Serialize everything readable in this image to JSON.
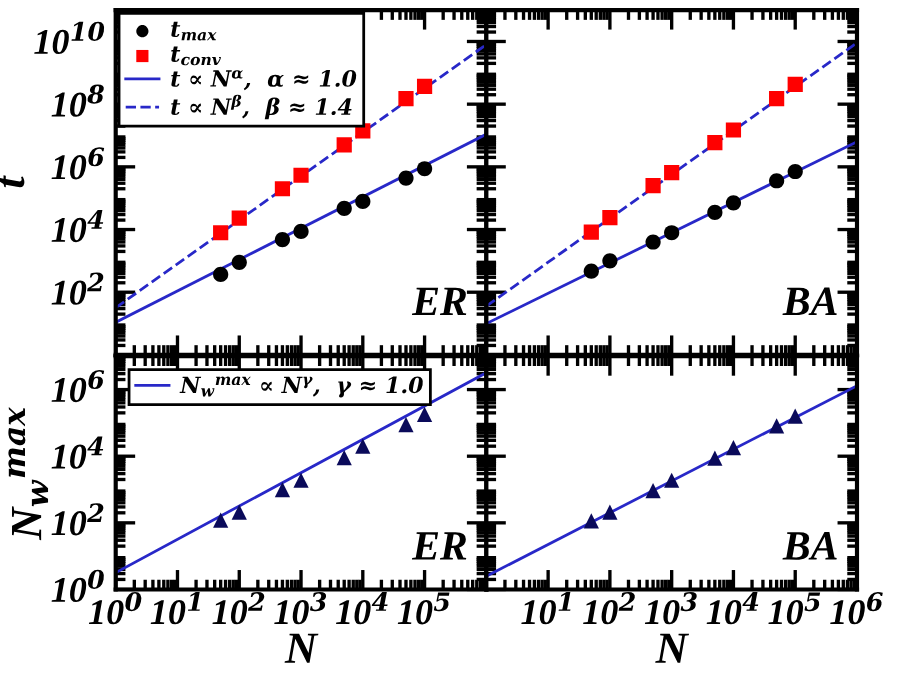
{
  "chart_data": [
    {
      "type": "scatter",
      "ylabel": "t",
      "log": "xy",
      "xlim": [
        1,
        1000000
      ],
      "ylim": [
        1,
        100000000000
      ],
      "tick_labels": "y",
      "legend": "top left",
      "annotations": [
        "ER"
      ],
      "xticks": [
        {
          "value": 1,
          "label": null
        },
        {
          "value": 10,
          "label": null
        },
        {
          "value": 100,
          "label": null
        },
        {
          "value": 1000,
          "label": null
        },
        {
          "value": 10000,
          "label": null
        },
        {
          "value": 100000,
          "label": null
        },
        {
          "value": 1000000,
          "label": null
        }
      ],
      "yticks": [
        {
          "value": 100,
          "label": "10$^{2}$"
        },
        {
          "value": 10000,
          "label": "10$^{4}$"
        },
        {
          "value": 1000000,
          "label": "10$^{6}$"
        },
        {
          "value": 100000000,
          "label": "10$^{8}$"
        },
        {
          "value": 10000000000,
          "label": "10$^{10}$"
        }
      ],
      "series": [
        {
          "name": "t$_{max}$",
          "marker": "circle",
          "color": "#000000",
          "x": [
            50,
            100,
            500,
            1000,
            5000,
            10000,
            50000,
            100000
          ],
          "values": [
            370,
            900,
            4800,
            8700,
            47000,
            79000,
            440000,
            870000
          ]
        },
        {
          "name": "t$_{conv}$",
          "marker": "square",
          "color": "#ff0000",
          "x": [
            50,
            100,
            500,
            1000,
            5000,
            10000,
            50000,
            100000
          ],
          "values": [
            7900,
            23000,
            200000,
            540000,
            5000000,
            14000000,
            150000000,
            370000000
          ]
        },
        {
          "name": "t ∝ N$^{α}$,  α ≈ 1.0",
          "type": "line",
          "line_style": "solid",
          "color": "#2828c8",
          "x": [
            1,
            1000000
          ],
          "values": [
            11,
            11000000
          ]
        },
        {
          "name": "t ∝ N$^{β}$,  β ≈ 1.4",
          "type": "line",
          "line_style": "dashed",
          "color": "#2828c8",
          "x": [
            1,
            1000000
          ],
          "values": [
            32,
            8000000000
          ]
        }
      ]
    },
    {
      "type": "scatter",
      "log": "xy",
      "xlim": [
        1,
        1000000
      ],
      "ylim": [
        1,
        100000000000
      ],
      "tick_labels": false,
      "annotations": [
        "BA"
      ],
      "xticks": [
        {
          "value": 1,
          "label": null
        },
        {
          "value": 10,
          "label": null
        },
        {
          "value": 100,
          "label": null
        },
        {
          "value": 1000,
          "label": null
        },
        {
          "value": 10000,
          "label": null
        },
        {
          "value": 100000,
          "label": null
        },
        {
          "value": 1000000,
          "label": null
        }
      ],
      "yticks": [
        {
          "value": 100,
          "label": null
        },
        {
          "value": 10000,
          "label": null
        },
        {
          "value": 1000000,
          "label": null
        },
        {
          "value": 100000000,
          "label": null
        },
        {
          "value": 10000000000,
          "label": null
        }
      ],
      "series": [
        {
          "marker": "circle",
          "color": "#000000",
          "x": [
            50,
            100,
            500,
            1000,
            5000,
            10000,
            50000,
            100000
          ],
          "values": [
            470,
            1000,
            4000,
            7900,
            35000,
            71000,
            360000,
            710000
          ]
        },
        {
          "marker": "square",
          "color": "#ff0000",
          "x": [
            50,
            100,
            500,
            1000,
            5000,
            10000,
            50000,
            100000
          ],
          "values": [
            8300,
            24000,
            250000,
            650000,
            5900000,
            15000000,
            150000000,
            430000000
          ]
        },
        {
          "type": "line",
          "line_style": "solid",
          "color": "#2828c8",
          "x": [
            1,
            1000000
          ],
          "values": [
            10,
            6300000
          ]
        },
        {
          "type": "line",
          "line_style": "dashed",
          "color": "#2828c8",
          "x": [
            1,
            1000000
          ],
          "values": [
            36,
            9100000000
          ]
        }
      ]
    },
    {
      "type": "scatter",
      "xlabel": "N",
      "ylabel": "N$_{w}$$^{max}$",
      "log": "xy",
      "xlim": [
        1,
        1000000
      ],
      "ylim": [
        1,
        10000000
      ],
      "legend": "top left",
      "annotations": [
        "ER"
      ],
      "xticks": [
        {
          "value": 1,
          "label": "10$^{0}$"
        },
        {
          "value": 10,
          "label": "10$^{1}$"
        },
        {
          "value": 100,
          "label": "10$^{2}$"
        },
        {
          "value": 1000,
          "label": "10$^{3}$"
        },
        {
          "value": 10000,
          "label": "10$^{4}$"
        },
        {
          "value": 100000,
          "label": "10$^{5}$"
        },
        {
          "value": 1000000,
          "label": null
        }
      ],
      "yticks": [
        {
          "value": 1,
          "label": "10$^{0}$"
        },
        {
          "value": 100,
          "label": "10$^{2}$"
        },
        {
          "value": 10000,
          "label": "10$^{4}$"
        },
        {
          "value": 1000000,
          "label": "10$^{6}$"
        }
      ],
      "series": [
        {
          "marker": "triangle",
          "color": "#0a0a5a",
          "x": [
            50,
            100,
            500,
            1000,
            5000,
            10000,
            50000,
            100000
          ],
          "values": [
            120,
            210,
            1000,
            1900,
            9100,
            20000,
            89000,
            180000
          ]
        },
        {
          "name": "N$_{w}$$^{max}$ ∝ N$^{γ}$,  γ ≈ 1.0",
          "type": "line",
          "line_style": "solid",
          "color": "#2828c8",
          "x": [
            1,
            1000000
          ],
          "values": [
            3.2,
            3200000
          ]
        }
      ]
    },
    {
      "type": "scatter",
      "xlabel": "N",
      "log": "xy",
      "xlim": [
        1,
        1000000
      ],
      "ylim": [
        1,
        10000000
      ],
      "tick_labels": "x",
      "annotations": [
        "BA"
      ],
      "xticks": [
        {
          "value": 1,
          "label": null
        },
        {
          "value": 10,
          "label": "10$^{1}$"
        },
        {
          "value": 100,
          "label": "10$^{2}$"
        },
        {
          "value": 1000,
          "label": "10$^{3}$"
        },
        {
          "value": 10000,
          "label": "10$^{4}$"
        },
        {
          "value": 100000,
          "label": "10$^{5}$"
        },
        {
          "value": 1000000,
          "label": "10$^{6}$"
        }
      ],
      "yticks": [
        {
          "value": 1,
          "label": null
        },
        {
          "value": 100,
          "label": null
        },
        {
          "value": 10000,
          "label": null
        },
        {
          "value": 1000000,
          "label": null
        }
      ],
      "series": [
        {
          "marker": "triangle",
          "color": "#0a0a5a",
          "x": [
            50,
            100,
            500,
            1000,
            5000,
            10000,
            50000,
            100000
          ],
          "values": [
            115,
            210,
            930,
            1900,
            8700,
            18000,
            81000,
            160000
          ]
        },
        {
          "type": "line",
          "line_style": "solid",
          "color": "#2828c8",
          "x": [
            1,
            1000000
          ],
          "values": [
            2.5,
            1300000
          ]
        }
      ]
    }
  ]
}
